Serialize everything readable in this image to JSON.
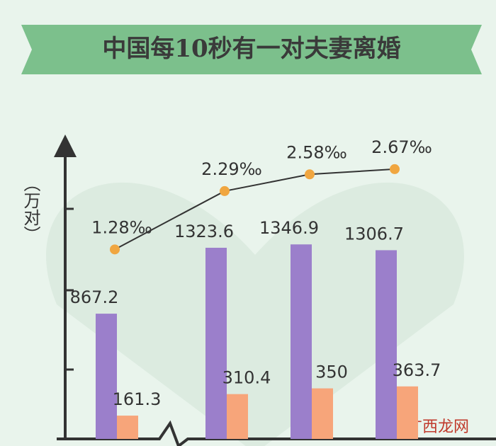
{
  "chart_data": {
    "type": "bar",
    "title": "中国每10秒有一对夫妻离婚",
    "y_label": "（万对）",
    "categories": [
      null,
      null,
      null,
      null
    ],
    "ylim": [
      0,
      2000
    ],
    "y2lim": [
      -2,
      3
    ],
    "series": [
      {
        "color": "#9b7fcb",
        "values": [
          867.2,
          1323.6,
          1346.9,
          1306.7
        ]
      },
      {
        "color": "#f7a57a",
        "values": [
          161.3,
          310.4,
          350,
          363.7
        ]
      },
      {
        "type": "line",
        "axis": "y2",
        "color": "#f0a640",
        "values": [
          1.28,
          2.29,
          2.58,
          2.67
        ],
        "value_labels": [
          "1.28‰",
          "2.29‰",
          "2.58‰",
          "2.67‰"
        ]
      }
    ],
    "watermark": "广西龙网"
  }
}
